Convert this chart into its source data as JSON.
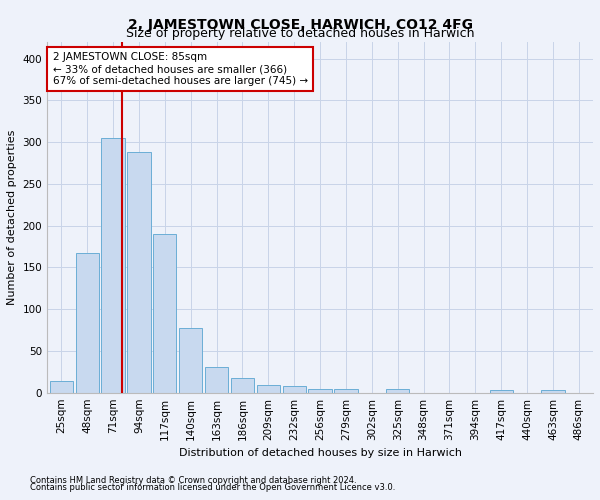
{
  "title": "2, JAMESTOWN CLOSE, HARWICH, CO12 4FG",
  "subtitle": "Size of property relative to detached houses in Harwich",
  "xlabel": "Distribution of detached houses by size in Harwich",
  "ylabel": "Number of detached properties",
  "footnote1": "Contains HM Land Registry data © Crown copyright and database right 2024.",
  "footnote2": "Contains public sector information licensed under the Open Government Licence v3.0.",
  "bar_labels": [
    "25sqm",
    "48sqm",
    "71sqm",
    "94sqm",
    "117sqm",
    "140sqm",
    "163sqm",
    "186sqm",
    "209sqm",
    "232sqm",
    "256sqm",
    "279sqm",
    "302sqm",
    "325sqm",
    "348sqm",
    "371sqm",
    "394sqm",
    "417sqm",
    "440sqm",
    "463sqm",
    "486sqm"
  ],
  "bar_values": [
    14,
    167,
    305,
    288,
    190,
    78,
    31,
    18,
    9,
    8,
    5,
    5,
    0,
    4,
    0,
    0,
    0,
    3,
    0,
    3,
    0
  ],
  "bar_color": "#c8d9ef",
  "bar_edge_color": "#6baed6",
  "vline_x_offset": 0.35,
  "vline_bin_index": 2,
  "vline_color": "#cc0000",
  "annotation_text": "2 JAMESTOWN CLOSE: 85sqm\n← 33% of detached houses are smaller (366)\n67% of semi-detached houses are larger (745) →",
  "annotation_box_color": "white",
  "annotation_box_edge": "#cc0000",
  "ylim": [
    0,
    420
  ],
  "yticks": [
    0,
    50,
    100,
    150,
    200,
    250,
    300,
    350,
    400
  ],
  "grid_color": "#c8d4e8",
  "background_color": "#eef2fa",
  "plot_bg_color": "#eef2fa",
  "title_fontsize": 10,
  "subtitle_fontsize": 9,
  "ylabel_fontsize": 8,
  "xlabel_fontsize": 8,
  "tick_fontsize": 7.5,
  "footnote_fontsize": 6
}
